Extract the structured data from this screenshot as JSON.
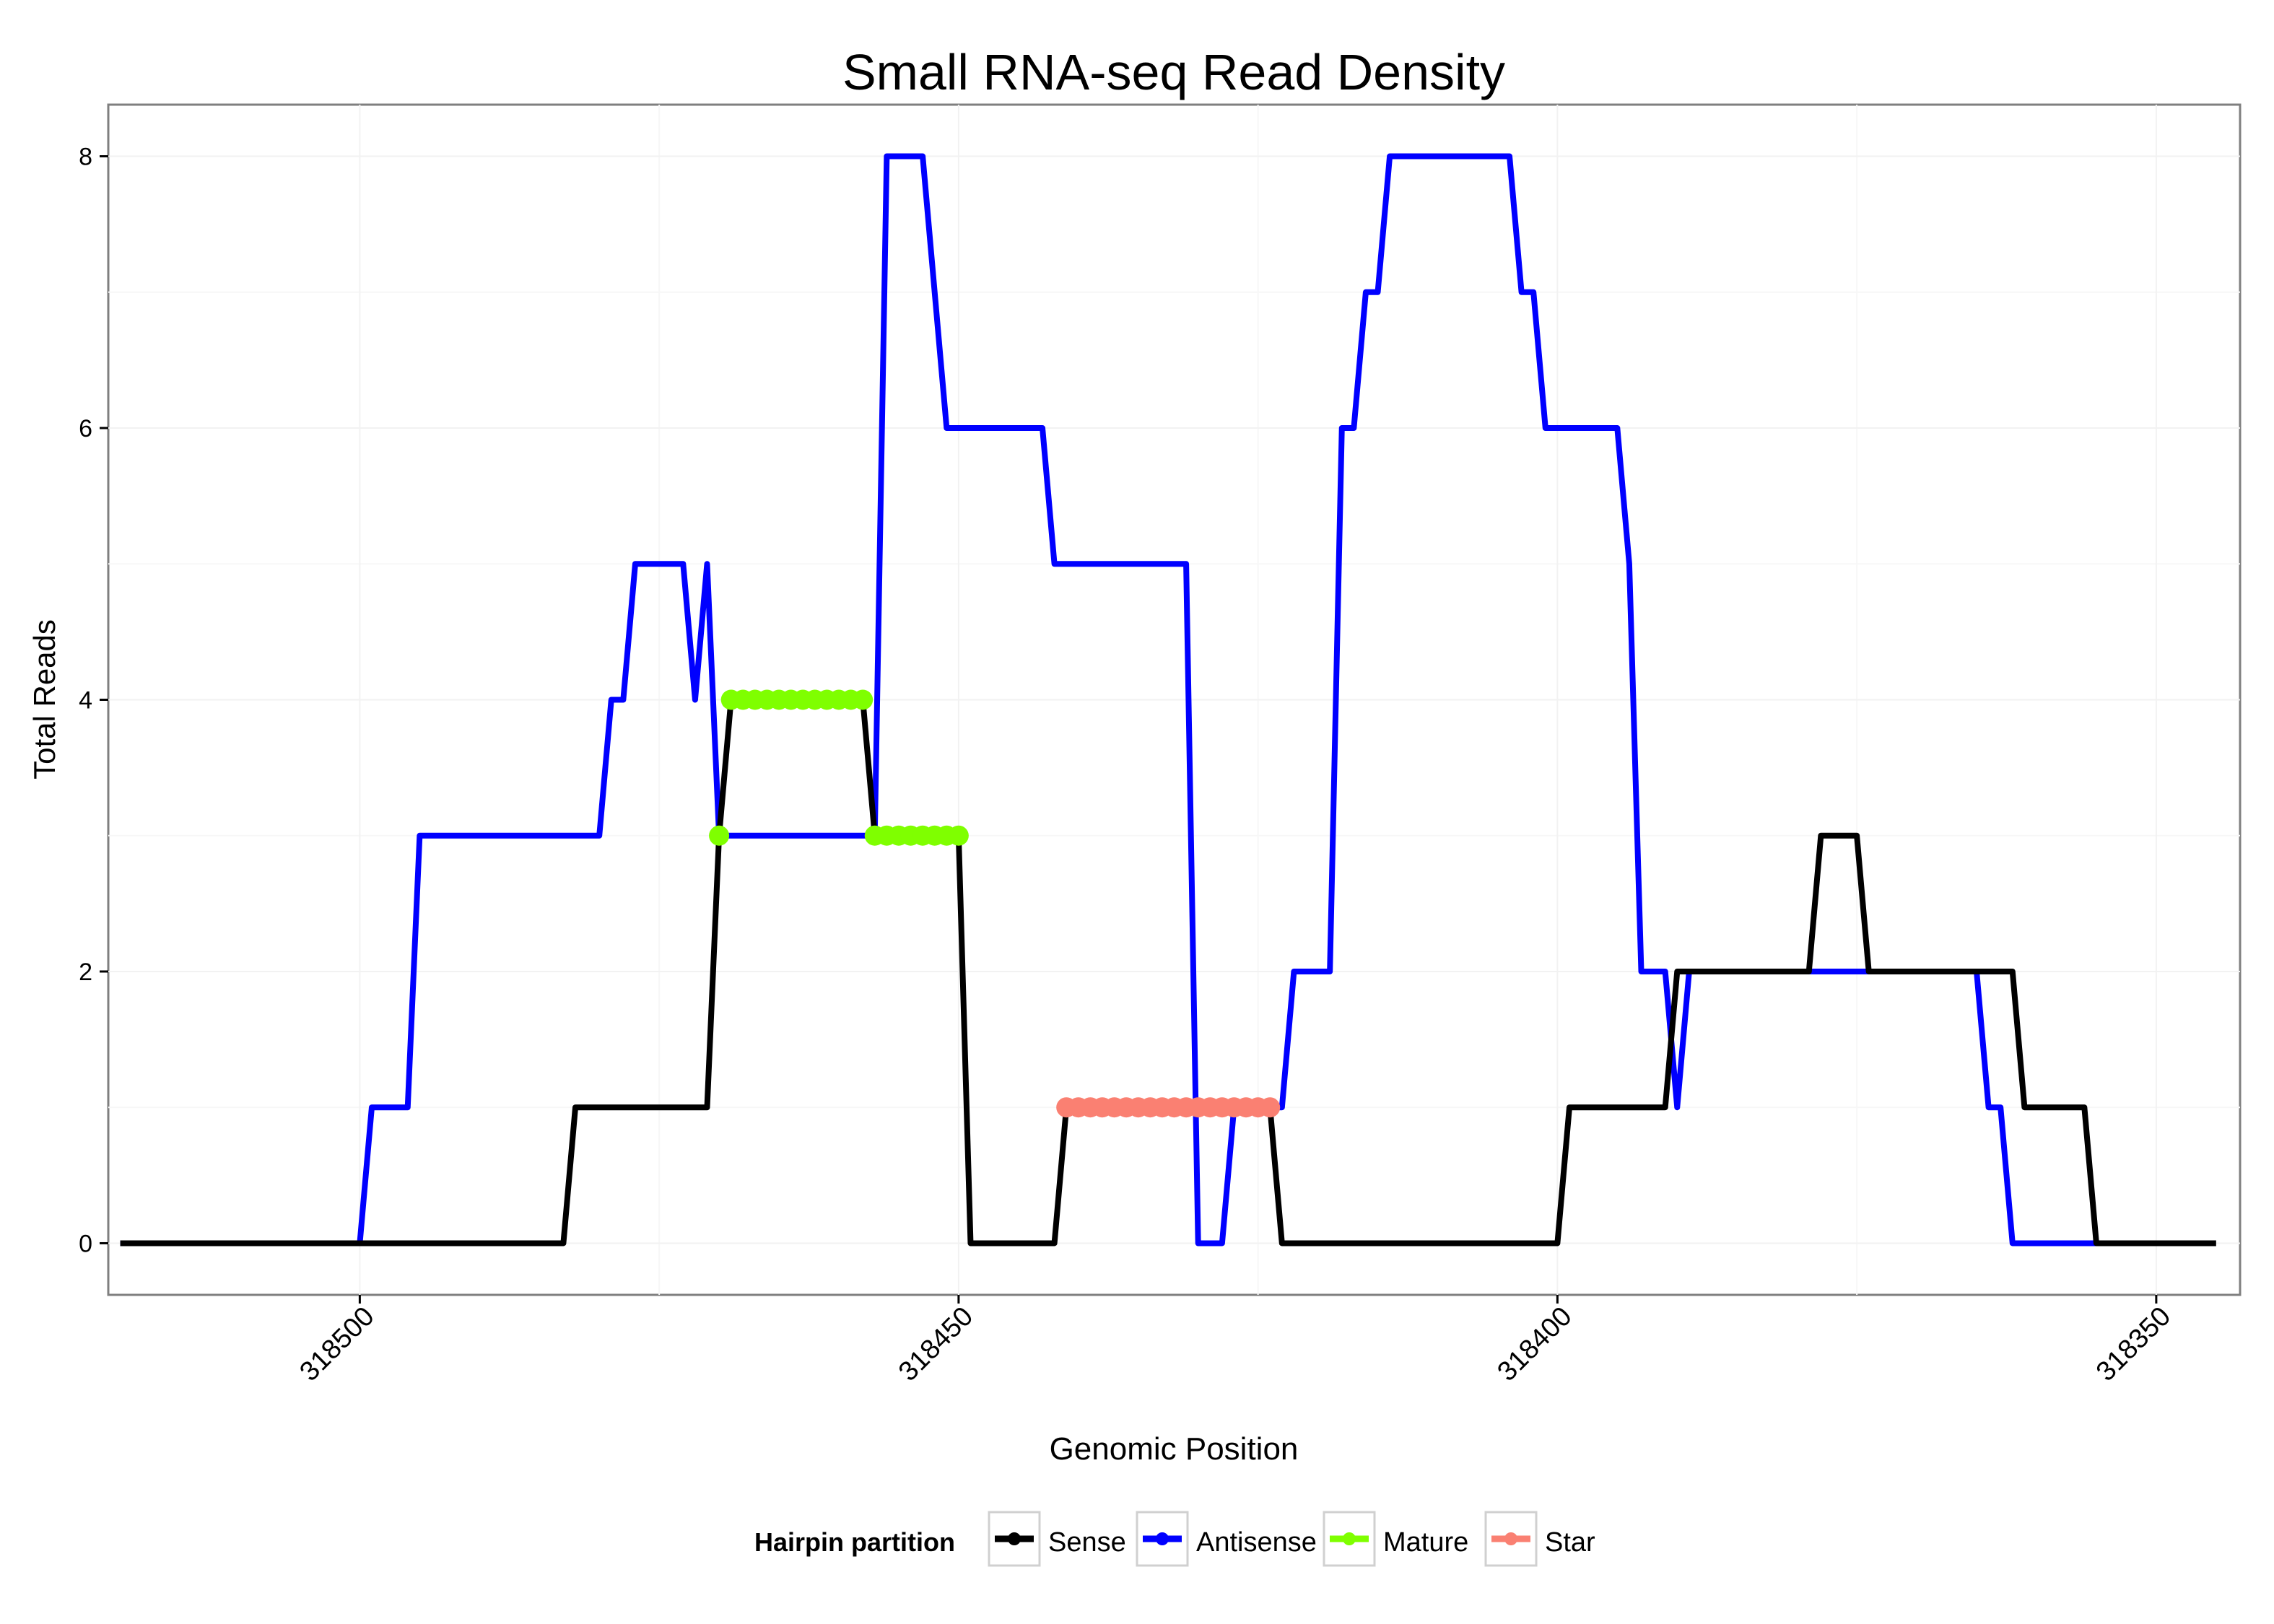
{
  "chart_data": {
    "type": "line",
    "title": "Small RNA-seq Read Density",
    "xlabel": "Genomic Position",
    "ylabel": "Total Reads",
    "xlim": [
      318521,
      318343
    ],
    "x_reversed": true,
    "ylim": [
      -0.38,
      8.38
    ],
    "xticks": [
      318500,
      318450,
      318400,
      318350
    ],
    "xtick_labels": [
      "318500",
      "318450",
      "318400",
      "318350"
    ],
    "yticks": [
      0,
      2,
      4,
      6,
      8
    ],
    "ytick_labels": [
      "0",
      "2",
      "4",
      "6",
      "8"
    ],
    "minor_xgrid": [
      318475,
      318425,
      318375
    ],
    "minor_ygrid": [
      1,
      3,
      5,
      7
    ],
    "grid": true,
    "legend": {
      "title": "Hairpin partition",
      "placement": "bottom",
      "entries": [
        "Sense",
        "Antisense",
        "Mature",
        "Star"
      ]
    },
    "series": [
      {
        "name": "Antisense",
        "color": "#0000ff",
        "kind": "line",
        "points": [
          [
            318520,
            0
          ],
          [
            318500,
            0
          ],
          [
            318499,
            1
          ],
          [
            318496,
            1
          ],
          [
            318495,
            3
          ],
          [
            318480,
            3
          ],
          [
            318479,
            4
          ],
          [
            318478,
            4
          ],
          [
            318477,
            5
          ],
          [
            318473,
            5
          ],
          [
            318472,
            4
          ],
          [
            318471,
            5
          ],
          [
            318470,
            3
          ],
          [
            318457,
            3
          ],
          [
            318456,
            8
          ],
          [
            318453,
            8
          ],
          [
            318452,
            7
          ],
          [
            318451,
            6
          ],
          [
            318443,
            6
          ],
          [
            318442,
            5
          ],
          [
            318431,
            5
          ],
          [
            318430,
            0
          ],
          [
            318428,
            0
          ],
          [
            318427,
            1
          ],
          [
            318423,
            1
          ],
          [
            318422,
            2
          ],
          [
            318419,
            2
          ],
          [
            318418,
            6
          ],
          [
            318417,
            6
          ],
          [
            318416,
            7
          ],
          [
            318415,
            7
          ],
          [
            318414,
            8
          ],
          [
            318404,
            8
          ],
          [
            318403,
            7
          ],
          [
            318402,
            7
          ],
          [
            318401,
            6
          ],
          [
            318395,
            6
          ],
          [
            318394,
            5
          ],
          [
            318393,
            2
          ],
          [
            318391,
            2
          ],
          [
            318390,
            1
          ],
          [
            318389,
            2
          ],
          [
            318365,
            2
          ],
          [
            318364,
            1
          ],
          [
            318363,
            1
          ],
          [
            318362,
            0
          ],
          [
            318355,
            0
          ]
        ]
      },
      {
        "name": "Sense",
        "color": "#000000",
        "kind": "line",
        "points": [
          [
            318520,
            0
          ],
          [
            318483,
            0
          ],
          [
            318482,
            1
          ],
          [
            318471,
            1
          ],
          [
            318470,
            3
          ],
          [
            318469,
            4
          ],
          [
            318458,
            4
          ],
          [
            318457,
            3
          ],
          [
            318450,
            3
          ],
          [
            318449,
            0
          ],
          [
            318442,
            0
          ],
          [
            318441,
            1
          ],
          [
            318424,
            1
          ],
          [
            318423,
            0
          ],
          [
            318400,
            0
          ],
          [
            318399,
            1
          ],
          [
            318391,
            1
          ],
          [
            318390,
            2
          ],
          [
            318379,
            2
          ],
          [
            318378,
            3
          ],
          [
            318375,
            3
          ],
          [
            318374,
            2
          ],
          [
            318362,
            2
          ],
          [
            318361,
            1
          ],
          [
            318356,
            1
          ],
          [
            318355,
            0
          ],
          [
            318345,
            0
          ]
        ]
      },
      {
        "name": "Mature",
        "color": "#7fff00",
        "kind": "points",
        "points": [
          [
            318470,
            3
          ],
          [
            318469,
            4
          ],
          [
            318468,
            4
          ],
          [
            318467,
            4
          ],
          [
            318466,
            4
          ],
          [
            318465,
            4
          ],
          [
            318464,
            4
          ],
          [
            318463,
            4
          ],
          [
            318462,
            4
          ],
          [
            318461,
            4
          ],
          [
            318460,
            4
          ],
          [
            318459,
            4
          ],
          [
            318458,
            4
          ],
          [
            318457,
            3
          ],
          [
            318456,
            3
          ],
          [
            318455,
            3
          ],
          [
            318454,
            3
          ],
          [
            318453,
            3
          ],
          [
            318452,
            3
          ],
          [
            318451,
            3
          ],
          [
            318450,
            3
          ]
        ]
      },
      {
        "name": "Star",
        "color": "#fa8072",
        "kind": "points",
        "points": [
          [
            318441,
            1
          ],
          [
            318440,
            1
          ],
          [
            318439,
            1
          ],
          [
            318438,
            1
          ],
          [
            318437,
            1
          ],
          [
            318436,
            1
          ],
          [
            318435,
            1
          ],
          [
            318434,
            1
          ],
          [
            318433,
            1
          ],
          [
            318432,
            1
          ],
          [
            318431,
            1
          ],
          [
            318430,
            1
          ],
          [
            318429,
            1
          ],
          [
            318428,
            1
          ],
          [
            318427,
            1
          ],
          [
            318426,
            1
          ],
          [
            318425,
            1
          ],
          [
            318424,
            1
          ]
        ]
      }
    ]
  }
}
